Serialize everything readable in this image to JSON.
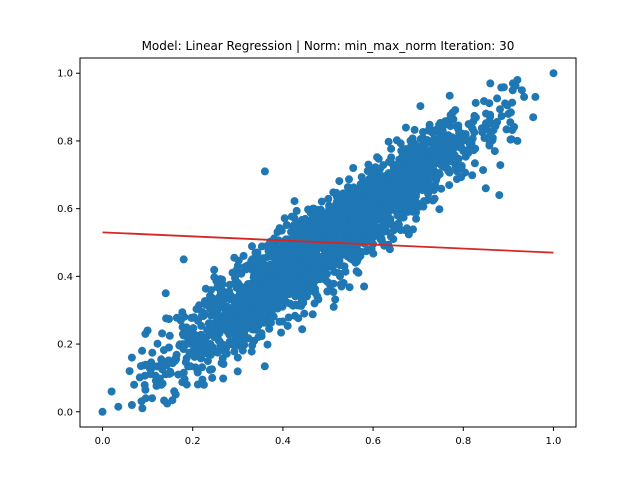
{
  "chart_data": {
    "type": "scatter",
    "title": "Model: Linear Regression | Norm: min_max_norm  Iteration: 30",
    "xlabel": "",
    "ylabel": "",
    "xlim": [
      -0.05,
      1.05
    ],
    "ylim": [
      -0.045,
      1.045
    ],
    "xticks": [
      0.0,
      0.2,
      0.4,
      0.6,
      0.8,
      1.0
    ],
    "yticks": [
      0.0,
      0.2,
      0.4,
      0.6,
      0.8,
      1.0
    ],
    "xtick_labels": [
      "0.0",
      "0.2",
      "0.4",
      "0.6",
      "0.8",
      "1.0"
    ],
    "ytick_labels": [
      "0.0",
      "0.2",
      "0.4",
      "0.6",
      "0.8",
      "1.0"
    ],
    "grid": false,
    "colors": {
      "points": "#1f77b4",
      "line": "#d62728"
    },
    "scatter_trend": {
      "description": "dense linear cloud, y approximately equals x, spread about 0.06",
      "x_range": [
        0.0,
        1.0
      ],
      "slope": 1.0,
      "intercept": 0.0
    },
    "outlier_points": [
      {
        "x": 0.0,
        "y": 0.0
      },
      {
        "x": 1.0,
        "y": 1.0
      },
      {
        "x": 0.02,
        "y": 0.06
      },
      {
        "x": 0.035,
        "y": 0.015
      },
      {
        "x": 0.065,
        "y": 0.02
      },
      {
        "x": 0.07,
        "y": 0.08
      },
      {
        "x": 0.06,
        "y": 0.12
      },
      {
        "x": 0.095,
        "y": 0.065
      },
      {
        "x": 0.085,
        "y": 0.135
      },
      {
        "x": 0.065,
        "y": 0.16
      },
      {
        "x": 0.1,
        "y": 0.24
      },
      {
        "x": 0.14,
        "y": 0.35
      },
      {
        "x": 0.11,
        "y": 0.04
      },
      {
        "x": 0.18,
        "y": 0.45
      },
      {
        "x": 0.13,
        "y": 0.155
      },
      {
        "x": 0.095,
        "y": 0.23
      },
      {
        "x": 0.86,
        "y": 0.82
      },
      {
        "x": 0.87,
        "y": 0.77
      },
      {
        "x": 0.91,
        "y": 0.97
      },
      {
        "x": 0.935,
        "y": 0.93
      },
      {
        "x": 0.96,
        "y": 0.93
      },
      {
        "x": 0.955,
        "y": 0.87
      },
      {
        "x": 0.92,
        "y": 0.98
      },
      {
        "x": 0.86,
        "y": 0.97
      },
      {
        "x": 0.88,
        "y": 0.64
      },
      {
        "x": 0.85,
        "y": 0.66
      },
      {
        "x": 0.93,
        "y": 0.95
      },
      {
        "x": 0.36,
        "y": 0.71
      },
      {
        "x": 0.53,
        "y": 0.37
      },
      {
        "x": 0.58,
        "y": 0.37
      },
      {
        "x": 0.47,
        "y": 0.32
      },
      {
        "x": 0.3,
        "y": 0.16
      },
      {
        "x": 0.22,
        "y": 0.18
      },
      {
        "x": 0.92,
        "y": 0.8
      },
      {
        "x": 0.9,
        "y": 0.88
      }
    ],
    "regression_line": {
      "x": [
        0.0,
        1.0
      ],
      "y": [
        0.53,
        0.47
      ]
    }
  }
}
